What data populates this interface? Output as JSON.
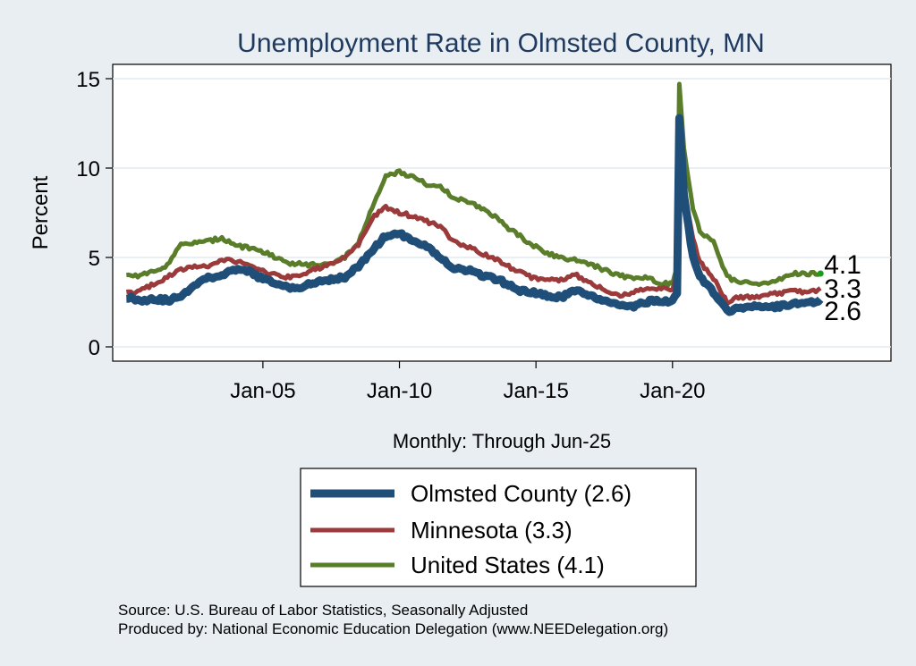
{
  "chart_data": {
    "type": "line",
    "title": "Unemployment Rate in Olmsted  County, MN",
    "ylabel": "Percent",
    "xlabel": "",
    "x_range": [
      2000.0,
      2025.42
    ],
    "xlim": [
      1999.5,
      2028.0
    ],
    "ylim": [
      -0.8,
      15.8
    ],
    "y_ticks": [
      0,
      5,
      10,
      15
    ],
    "x_ticks": [
      {
        "value": 2005,
        "label": "Jan-05"
      },
      {
        "value": 2010,
        "label": "Jan-10"
      },
      {
        "value": 2015,
        "label": "Jan-15"
      },
      {
        "value": 2020,
        "label": "Jan-20"
      }
    ],
    "grid": true,
    "note": "Monthly: Through Jun-25",
    "series": [
      {
        "name": "Olmsted  County (2.6)",
        "color": "#1f4e79",
        "end_label": "2.6",
        "end_value": 2.6,
        "anchors": [
          [
            2000.0,
            2.8
          ],
          [
            2000.5,
            2.6
          ],
          [
            2001.0,
            2.7
          ],
          [
            2001.5,
            2.6
          ],
          [
            2002.0,
            2.8
          ],
          [
            2002.5,
            3.5
          ],
          [
            2003.0,
            3.9
          ],
          [
            2003.5,
            4.0
          ],
          [
            2004.0,
            4.3
          ],
          [
            2004.5,
            4.2
          ],
          [
            2005.0,
            3.8
          ],
          [
            2005.5,
            3.5
          ],
          [
            2006.0,
            3.3
          ],
          [
            2006.5,
            3.4
          ],
          [
            2007.0,
            3.6
          ],
          [
            2007.5,
            3.8
          ],
          [
            2008.0,
            3.9
          ],
          [
            2008.5,
            4.5
          ],
          [
            2009.0,
            5.4
          ],
          [
            2009.5,
            6.2
          ],
          [
            2010.0,
            6.3
          ],
          [
            2010.5,
            6.0
          ],
          [
            2011.0,
            5.6
          ],
          [
            2011.5,
            5.0
          ],
          [
            2012.0,
            4.4
          ],
          [
            2012.5,
            4.3
          ],
          [
            2013.0,
            4.0
          ],
          [
            2013.5,
            3.8
          ],
          [
            2014.0,
            3.5
          ],
          [
            2014.5,
            3.1
          ],
          [
            2015.0,
            3.0
          ],
          [
            2015.5,
            2.8
          ],
          [
            2016.0,
            2.8
          ],
          [
            2016.5,
            3.2
          ],
          [
            2017.0,
            2.9
          ],
          [
            2017.5,
            2.5
          ],
          [
            2018.0,
            2.4
          ],
          [
            2018.5,
            2.2
          ],
          [
            2019.0,
            2.5
          ],
          [
            2019.5,
            2.6
          ],
          [
            2020.0,
            2.5
          ],
          [
            2020.17,
            3.0
          ],
          [
            2020.25,
            12.8
          ],
          [
            2020.42,
            8.5
          ],
          [
            2020.75,
            5.0
          ],
          [
            2021.0,
            4.0
          ],
          [
            2021.5,
            3.0
          ],
          [
            2022.0,
            2.0
          ],
          [
            2022.5,
            2.2
          ],
          [
            2023.0,
            2.3
          ],
          [
            2023.5,
            2.2
          ],
          [
            2024.0,
            2.3
          ],
          [
            2024.5,
            2.4
          ],
          [
            2025.0,
            2.5
          ],
          [
            2025.42,
            2.6
          ]
        ]
      },
      {
        "name": "Minnesota (3.3)",
        "color": "#9b3a3a",
        "end_label": "3.3",
        "end_value": 3.3,
        "anchors": [
          [
            2000.0,
            3.0
          ],
          [
            2000.5,
            3.1
          ],
          [
            2001.0,
            3.5
          ],
          [
            2001.5,
            3.9
          ],
          [
            2002.0,
            4.3
          ],
          [
            2002.5,
            4.5
          ],
          [
            2003.0,
            4.5
          ],
          [
            2003.5,
            4.9
          ],
          [
            2004.0,
            4.8
          ],
          [
            2004.5,
            4.6
          ],
          [
            2005.0,
            4.2
          ],
          [
            2005.5,
            4.0
          ],
          [
            2006.0,
            3.9
          ],
          [
            2006.5,
            4.1
          ],
          [
            2007.0,
            4.4
          ],
          [
            2007.5,
            4.6
          ],
          [
            2008.0,
            5.0
          ],
          [
            2008.5,
            5.7
          ],
          [
            2009.0,
            7.2
          ],
          [
            2009.5,
            7.8
          ],
          [
            2010.0,
            7.5
          ],
          [
            2010.5,
            7.3
          ],
          [
            2011.0,
            7.0
          ],
          [
            2011.5,
            6.7
          ],
          [
            2012.0,
            5.9
          ],
          [
            2012.5,
            5.6
          ],
          [
            2013.0,
            5.2
          ],
          [
            2013.5,
            4.9
          ],
          [
            2014.0,
            4.5
          ],
          [
            2014.5,
            4.1
          ],
          [
            2015.0,
            3.8
          ],
          [
            2015.5,
            3.7
          ],
          [
            2016.0,
            3.8
          ],
          [
            2016.5,
            4.0
          ],
          [
            2017.0,
            3.6
          ],
          [
            2017.5,
            3.2
          ],
          [
            2018.0,
            2.9
          ],
          [
            2018.5,
            3.0
          ],
          [
            2019.0,
            3.2
          ],
          [
            2019.5,
            3.3
          ],
          [
            2020.0,
            3.2
          ],
          [
            2020.17,
            4.0
          ],
          [
            2020.25,
            11.0
          ],
          [
            2020.42,
            9.0
          ],
          [
            2020.75,
            6.0
          ],
          [
            2021.0,
            4.8
          ],
          [
            2021.5,
            3.8
          ],
          [
            2022.0,
            2.5
          ],
          [
            2022.5,
            2.8
          ],
          [
            2023.0,
            2.8
          ],
          [
            2023.5,
            2.9
          ],
          [
            2024.0,
            3.0
          ],
          [
            2024.5,
            3.1
          ],
          [
            2025.0,
            3.0
          ],
          [
            2025.42,
            3.3
          ]
        ]
      },
      {
        "name": "United States (4.1)",
        "color": "#5a7d2a",
        "end_label": "4.1",
        "end_value": 4.1,
        "anchors": [
          [
            2000.0,
            4.0
          ],
          [
            2000.5,
            4.0
          ],
          [
            2001.0,
            4.2
          ],
          [
            2001.5,
            4.6
          ],
          [
            2002.0,
            5.7
          ],
          [
            2002.5,
            5.8
          ],
          [
            2003.0,
            5.9
          ],
          [
            2003.5,
            6.1
          ],
          [
            2004.0,
            5.7
          ],
          [
            2004.5,
            5.5
          ],
          [
            2005.0,
            5.3
          ],
          [
            2005.5,
            5.0
          ],
          [
            2006.0,
            4.7
          ],
          [
            2006.5,
            4.6
          ],
          [
            2007.0,
            4.6
          ],
          [
            2007.5,
            4.7
          ],
          [
            2008.0,
            5.0
          ],
          [
            2008.5,
            5.8
          ],
          [
            2009.0,
            7.8
          ],
          [
            2009.5,
            9.5
          ],
          [
            2010.0,
            9.8
          ],
          [
            2010.5,
            9.5
          ],
          [
            2011.0,
            9.1
          ],
          [
            2011.5,
            9.0
          ],
          [
            2012.0,
            8.3
          ],
          [
            2012.5,
            8.1
          ],
          [
            2013.0,
            7.8
          ],
          [
            2013.5,
            7.3
          ],
          [
            2014.0,
            6.6
          ],
          [
            2014.5,
            6.1
          ],
          [
            2015.0,
            5.6
          ],
          [
            2015.5,
            5.2
          ],
          [
            2016.0,
            4.9
          ],
          [
            2016.5,
            4.9
          ],
          [
            2017.0,
            4.6
          ],
          [
            2017.5,
            4.3
          ],
          [
            2018.0,
            4.0
          ],
          [
            2018.5,
            3.9
          ],
          [
            2019.0,
            3.9
          ],
          [
            2019.5,
            3.6
          ],
          [
            2020.0,
            3.5
          ],
          [
            2020.17,
            4.4
          ],
          [
            2020.25,
            14.7
          ],
          [
            2020.42,
            11.0
          ],
          [
            2020.75,
            7.8
          ],
          [
            2021.0,
            6.4
          ],
          [
            2021.5,
            5.9
          ],
          [
            2022.0,
            3.9
          ],
          [
            2022.5,
            3.6
          ],
          [
            2023.0,
            3.5
          ],
          [
            2023.5,
            3.6
          ],
          [
            2024.0,
            3.8
          ],
          [
            2024.5,
            4.1
          ],
          [
            2025.0,
            4.1
          ],
          [
            2025.42,
            4.1
          ]
        ]
      }
    ],
    "legend": {
      "position": "bottom",
      "entries": [
        "Olmsted  County (2.6)",
        "Minnesota (3.3)",
        "United States (4.1)"
      ]
    }
  },
  "source": {
    "line1": "Source: U.S. Bureau of Labor Statistics, Seasonally Adjusted",
    "line2": "Produced by: National Economic Education Delegation (www.NEEDelegation.org)"
  }
}
